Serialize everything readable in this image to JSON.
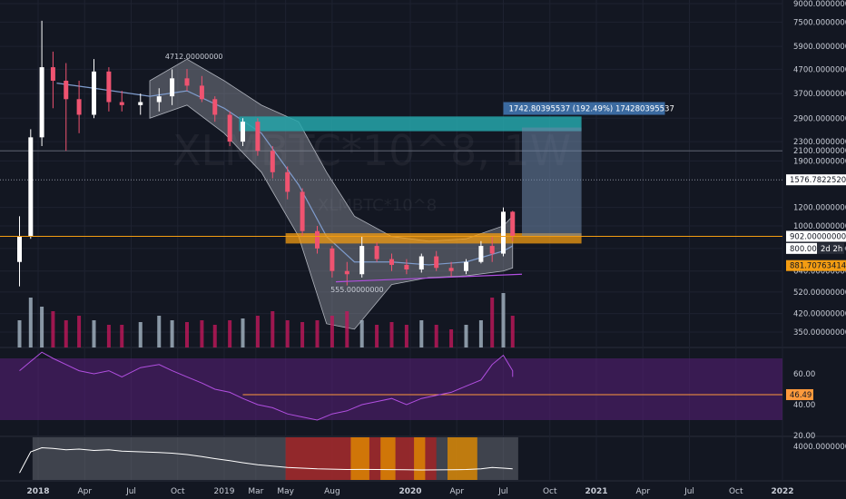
{
  "watermark": {
    "symbol": "XLMBTC*10^8, 1W",
    "description": "XLMBTC*10^8"
  },
  "colors": {
    "background": "#131722",
    "grid": "#1e2230",
    "axis_text": "#c8ccd6",
    "candle_up": "#ffffff",
    "candle_down": "#ef5370",
    "bollinger_fill": "#8f939e",
    "midline": "#7f9ccd",
    "resistance_zone": "#26a6aa",
    "support_zone": "#f39c12",
    "projection": "#6e86a8",
    "rsi_band": "#5a1f7a",
    "rsi_line": "#b14fe0",
    "rsi_level_line": "#ff9a3c",
    "trendline": "#b14fe0",
    "volume_up": "#a7b8c7",
    "volume_down": "#c2185b",
    "bottom_panel_line": "#ffffff",
    "bottom_red_zone": "#b71c1c",
    "bottom_orange_zone": "#e08a00",
    "price_label_blue": "#3b6aa0"
  },
  "chart_data": {
    "type": "candlestick",
    "price_scale": "log",
    "price_axis_ticks": [
      "9000.00000000",
      "7500.00000000",
      "5900.00000000",
      "4700.00000000",
      "3700.00000000",
      "2900.00000000",
      "2300.00000000",
      "2100.00000000",
      "1900.00000000",
      "1200.00000000",
      "1000.00000000",
      "800.00000000",
      "640.00000000",
      "520.00000000",
      "420.00000000",
      "350.00000000"
    ],
    "price_axis_values": [
      9000,
      7500,
      5900,
      4700,
      3700,
      2900,
      2300,
      2100,
      1900,
      1200,
      1000,
      800,
      640,
      520,
      420,
      350
    ],
    "time_axis_labels": [
      "2018",
      "Apr",
      "Jul",
      "Oct",
      "2019",
      "Mar",
      "May",
      "Aug",
      "2020",
      "Apr",
      "Jul",
      "Oct",
      "2021",
      "Apr",
      "Jul",
      "Oct",
      "2022"
    ],
    "time_axis_values": [
      2018.0,
      2018.25,
      2018.5,
      2018.75,
      2019.0,
      2019.17,
      2019.33,
      2019.58,
      2020.0,
      2020.25,
      2020.5,
      2020.75,
      2021.0,
      2021.25,
      2021.5,
      2021.75,
      2022.0
    ],
    "price_labels": [
      {
        "text": "1576.78225200",
        "value": 1576.782252
      },
      {
        "text": "902.00000000",
        "value": 902
      },
      {
        "text": "800.00",
        "value": 800
      },
      {
        "text": "2d 2h",
        "value": 800
      },
      {
        "text": "881.70763414",
        "value": 881.70763414
      }
    ],
    "annotations": [
      {
        "text": "4712.00000000",
        "value": 4712
      },
      {
        "text": "555.00000000",
        "value": 555
      },
      {
        "text": "1742.80395537 (192.49%) 174280395537"
      }
    ],
    "candles_approx": [
      {
        "t": 2017.9,
        "o": 700,
        "h": 1100,
        "l": 550,
        "c": 900
      },
      {
        "t": 2017.96,
        "o": 900,
        "h": 2600,
        "l": 880,
        "c": 2400
      },
      {
        "t": 2018.02,
        "o": 2400,
        "h": 7600,
        "l": 2200,
        "c": 4800
      },
      {
        "t": 2018.08,
        "o": 4800,
        "h": 5600,
        "l": 3200,
        "c": 4200
      },
      {
        "t": 2018.15,
        "o": 4200,
        "h": 5000,
        "l": 2100,
        "c": 3500
      },
      {
        "t": 2018.22,
        "o": 3500,
        "h": 4200,
        "l": 2500,
        "c": 3000
      },
      {
        "t": 2018.3,
        "o": 3000,
        "h": 5200,
        "l": 2900,
        "c": 4600
      },
      {
        "t": 2018.38,
        "o": 4600,
        "h": 4800,
        "l": 3100,
        "c": 3400
      },
      {
        "t": 2018.45,
        "o": 3400,
        "h": 3800,
        "l": 3100,
        "c": 3300
      },
      {
        "t": 2018.55,
        "o": 3300,
        "h": 3700,
        "l": 3000,
        "c": 3400
      },
      {
        "t": 2018.65,
        "o": 3400,
        "h": 3900,
        "l": 3100,
        "c": 3600
      },
      {
        "t": 2018.72,
        "o": 3600,
        "h": 4700,
        "l": 3300,
        "c": 4300
      },
      {
        "t": 2018.8,
        "o": 4300,
        "h": 4712,
        "l": 3800,
        "c": 4000
      },
      {
        "t": 2018.88,
        "o": 4000,
        "h": 4400,
        "l": 3400,
        "c": 3500
      },
      {
        "t": 2018.95,
        "o": 3500,
        "h": 3600,
        "l": 2800,
        "c": 3000
      },
      {
        "t": 2019.03,
        "o": 3000,
        "h": 3100,
        "l": 2200,
        "c": 2300
      },
      {
        "t": 2019.1,
        "o": 2300,
        "h": 2900,
        "l": 2200,
        "c": 2800
      },
      {
        "t": 2019.18,
        "o": 2800,
        "h": 2900,
        "l": 2000,
        "c": 2100
      },
      {
        "t": 2019.26,
        "o": 2100,
        "h": 2200,
        "l": 1600,
        "c": 1700
      },
      {
        "t": 2019.34,
        "o": 1700,
        "h": 1800,
        "l": 1300,
        "c": 1400
      },
      {
        "t": 2019.42,
        "o": 1400,
        "h": 1450,
        "l": 900,
        "c": 950
      },
      {
        "t": 2019.5,
        "o": 950,
        "h": 1000,
        "l": 760,
        "c": 800
      },
      {
        "t": 2019.58,
        "o": 800,
        "h": 820,
        "l": 600,
        "c": 640
      },
      {
        "t": 2019.66,
        "o": 640,
        "h": 700,
        "l": 555,
        "c": 620
      },
      {
        "t": 2019.74,
        "o": 620,
        "h": 900,
        "l": 600,
        "c": 820
      },
      {
        "t": 2019.82,
        "o": 820,
        "h": 850,
        "l": 700,
        "c": 720
      },
      {
        "t": 2019.9,
        "o": 720,
        "h": 760,
        "l": 640,
        "c": 680
      },
      {
        "t": 2019.98,
        "o": 680,
        "h": 720,
        "l": 620,
        "c": 650
      },
      {
        "t": 2020.06,
        "o": 650,
        "h": 760,
        "l": 630,
        "c": 740
      },
      {
        "t": 2020.14,
        "o": 740,
        "h": 780,
        "l": 640,
        "c": 660
      },
      {
        "t": 2020.22,
        "o": 660,
        "h": 700,
        "l": 600,
        "c": 640
      },
      {
        "t": 2020.3,
        "o": 640,
        "h": 720,
        "l": 620,
        "c": 700
      },
      {
        "t": 2020.38,
        "o": 700,
        "h": 860,
        "l": 690,
        "c": 820
      },
      {
        "t": 2020.44,
        "o": 820,
        "h": 900,
        "l": 700,
        "c": 760
      },
      {
        "t": 2020.5,
        "o": 760,
        "h": 1200,
        "l": 740,
        "c": 1150
      },
      {
        "t": 2020.55,
        "o": 1150,
        "h": 1160,
        "l": 860,
        "c": 900
      }
    ],
    "bollinger_upper_approx": [
      [
        2018.6,
        4200
      ],
      [
        2018.8,
        5200
      ],
      [
        2019.0,
        4200
      ],
      [
        2019.2,
        3300
      ],
      [
        2019.4,
        2800
      ],
      [
        2019.55,
        1700
      ],
      [
        2019.7,
        1100
      ],
      [
        2019.9,
        900
      ],
      [
        2020.1,
        860
      ],
      [
        2020.3,
        880
      ],
      [
        2020.5,
        1000
      ],
      [
        2020.55,
        1100
      ]
    ],
    "bollinger_lower_approx": [
      [
        2018.6,
        2900
      ],
      [
        2018.8,
        3300
      ],
      [
        2019.0,
        2500
      ],
      [
        2019.2,
        1700
      ],
      [
        2019.4,
        900
      ],
      [
        2019.55,
        380
      ],
      [
        2019.7,
        360
      ],
      [
        2019.9,
        560
      ],
      [
        2020.1,
        600
      ],
      [
        2020.3,
        610
      ],
      [
        2020.5,
        640
      ],
      [
        2020.55,
        660
      ]
    ],
    "basis_line_approx": [
      [
        2018.1,
        4100
      ],
      [
        2018.3,
        3900
      ],
      [
        2018.6,
        3600
      ],
      [
        2018.8,
        3800
      ],
      [
        2019.0,
        3200
      ],
      [
        2019.2,
        2500
      ],
      [
        2019.4,
        1500
      ],
      [
        2019.55,
        900
      ],
      [
        2019.7,
        700
      ],
      [
        2019.9,
        700
      ],
      [
        2020.1,
        680
      ],
      [
        2020.3,
        700
      ],
      [
        2020.5,
        780
      ],
      [
        2020.55,
        820
      ]
    ],
    "zones": [
      {
        "name": "",
        "from_time": 2019.08,
        "to_time": 2020.92,
        "low": 2550,
        "high": 2950
      },
      {
        "name": "",
        "from_time": 2019.33,
        "to_time": 2020.92,
        "low": 840,
        "high": 930
      }
    ],
    "projection_box": {
      "from_time": 2020.6,
      "to_time": 2020.92,
      "low": 902,
      "high": 2644
    },
    "rsi": {
      "axis_ticks": [
        "60.00",
        "40.00",
        "20.00"
      ],
      "axis_values": [
        60,
        40,
        20
      ],
      "level_label": "46.49",
      "level": 46.49,
      "band": [
        30,
        70
      ],
      "values_approx": [
        62,
        68,
        74,
        70,
        66,
        62,
        60,
        62,
        58,
        64,
        66,
        62,
        58,
        54,
        50,
        48,
        44,
        40,
        38,
        34,
        32,
        30,
        34,
        36,
        40,
        42,
        44,
        40,
        44,
        46,
        48,
        52,
        56,
        66,
        72,
        62,
        58
      ]
    },
    "bottom_panel": {
      "axis_ticks": [
        "4000.00000000"
      ],
      "axis_values": [
        4000
      ],
      "values_approx": [
        100,
        3200,
        3800,
        3700,
        3500,
        3600,
        3400,
        3500,
        3300,
        3200,
        3100,
        3000,
        2800,
        2500,
        2200,
        1900,
        1600,
        1300,
        1100,
        900,
        800,
        700,
        650,
        600,
        620,
        600,
        580,
        560,
        540,
        550,
        560,
        600,
        700,
        900,
        800,
        700
      ]
    },
    "volume_approx": [
      30,
      55,
      45,
      40,
      30,
      35,
      30,
      25,
      25,
      28,
      35,
      30,
      28,
      30,
      25,
      30,
      32,
      35,
      40,
      30,
      28,
      30,
      35,
      40,
      30,
      25,
      28,
      25,
      30,
      25,
      20,
      25,
      30,
      55,
      60,
      35
    ]
  }
}
